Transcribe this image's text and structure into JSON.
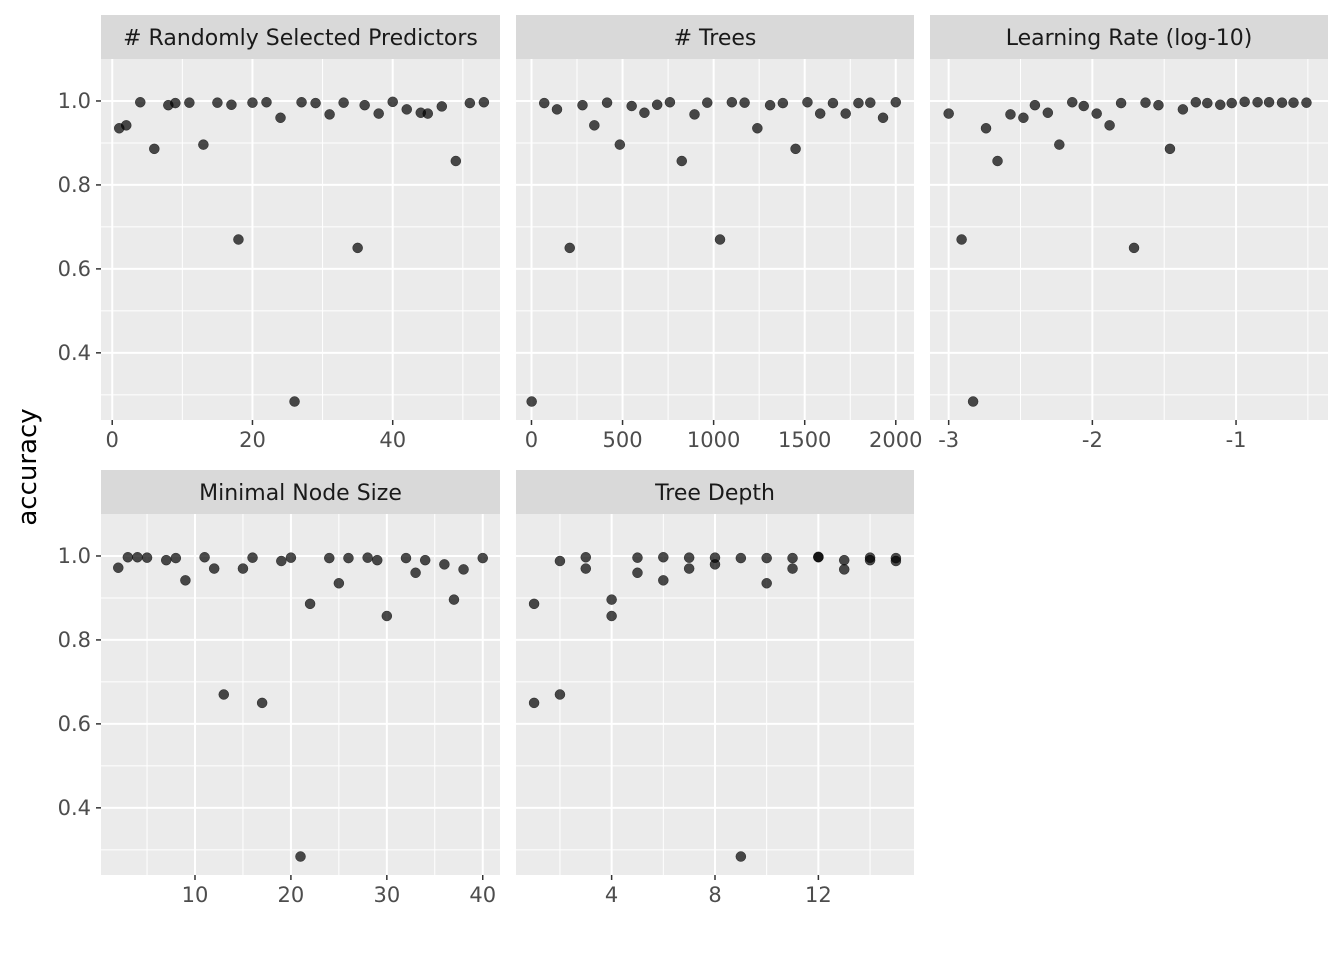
{
  "chart_data": {
    "type": "scatter",
    "ylabel": "accuracy",
    "ylim": [
      0.24,
      1.1
    ],
    "yticks": [
      0.4,
      0.6,
      0.8,
      1.0
    ],
    "ytick_labels": [
      "0.4",
      "0.6",
      "0.8",
      "1.0"
    ],
    "panels": [
      {
        "title": "# Randomly Selected Predictors",
        "xlim": [
          -1.6,
          55.3
        ],
        "xticks": [
          0,
          20,
          40
        ],
        "xtick_labels": [
          "0",
          "20",
          "40"
        ],
        "x": [
          1,
          2,
          4,
          6,
          8,
          9,
          11,
          13,
          15,
          17,
          18,
          20,
          22,
          24,
          26,
          27,
          29,
          31,
          33,
          35,
          36,
          38,
          40,
          42,
          44,
          45,
          47,
          49,
          51,
          53
        ],
        "y": [
          0.935,
          0.942,
          0.997,
          0.886,
          0.99,
          0.995,
          0.996,
          0.896,
          0.996,
          0.991,
          0.67,
          0.996,
          0.997,
          0.96,
          0.284,
          0.997,
          0.995,
          0.968,
          0.996,
          0.65,
          0.99,
          0.97,
          0.998,
          0.98,
          0.972,
          0.97,
          0.987,
          0.857,
          0.995,
          0.997
        ]
      },
      {
        "title": "# Trees",
        "xlim": [
          -85,
          2100
        ],
        "xticks": [
          0,
          500,
          1000,
          1500,
          2000
        ],
        "xtick_labels": [
          "0",
          "500",
          "1000",
          "1500",
          "2000"
        ],
        "x": [
          1,
          70,
          140,
          210,
          280,
          345,
          415,
          485,
          550,
          620,
          690,
          760,
          825,
          895,
          965,
          1035,
          1100,
          1170,
          1240,
          1310,
          1380,
          1450,
          1515,
          1585,
          1655,
          1725,
          1795,
          1860,
          1930,
          2000
        ],
        "y": [
          0.284,
          0.995,
          0.98,
          0.65,
          0.99,
          0.942,
          0.996,
          0.896,
          0.988,
          0.972,
          0.991,
          0.997,
          0.857,
          0.968,
          0.996,
          0.67,
          0.997,
          0.996,
          0.935,
          0.99,
          0.995,
          0.886,
          0.997,
          0.97,
          0.995,
          0.97,
          0.995,
          0.996,
          0.96,
          0.997
        ]
      },
      {
        "title": "Learning Rate (log-10)",
        "xlim": [
          -3.13,
          -0.36
        ],
        "xticks": [
          -3,
          -2,
          -1
        ],
        "xtick_labels": [
          "-3",
          "-2",
          "-1"
        ],
        "x": [
          -3.0,
          -2.91,
          -2.83,
          -2.74,
          -2.66,
          -2.57,
          -2.48,
          -2.4,
          -2.31,
          -2.23,
          -2.14,
          -2.06,
          -1.97,
          -1.88,
          -1.8,
          -1.71,
          -1.63,
          -1.54,
          -1.46,
          -1.37,
          -1.28,
          -1.2,
          -1.11,
          -1.03,
          -0.94,
          -0.85,
          -0.77,
          -0.68,
          -0.6,
          -0.51
        ],
        "y": [
          0.97,
          0.67,
          0.284,
          0.935,
          0.857,
          0.968,
          0.96,
          0.99,
          0.972,
          0.896,
          0.997,
          0.988,
          0.97,
          0.942,
          0.995,
          0.65,
          0.996,
          0.99,
          0.886,
          0.98,
          0.997,
          0.995,
          0.991,
          0.995,
          0.998,
          0.997,
          0.997,
          0.996,
          0.996,
          0.996
        ]
      },
      {
        "title": "Minimal Node Size",
        "xlim": [
          0.2,
          41.8
        ],
        "xticks": [
          10,
          20,
          30,
          40
        ],
        "xtick_labels": [
          "10",
          "20",
          "30",
          "40"
        ],
        "x": [
          2,
          3,
          4,
          5,
          7,
          8,
          9,
          11,
          12,
          13,
          15,
          16,
          17,
          19,
          20,
          21,
          22,
          24,
          25,
          26,
          28,
          29,
          30,
          32,
          33,
          34,
          36,
          37,
          38,
          40
        ],
        "y": [
          0.972,
          0.997,
          0.997,
          0.996,
          0.99,
          0.995,
          0.942,
          0.997,
          0.97,
          0.67,
          0.97,
          0.996,
          0.65,
          0.988,
          0.996,
          0.284,
          0.886,
          0.995,
          0.935,
          0.995,
          0.996,
          0.99,
          0.857,
          0.995,
          0.96,
          0.99,
          0.98,
          0.896,
          0.968,
          0.995
        ]
      },
      {
        "title": "Tree Depth",
        "xlim": [
          0.3,
          15.7
        ],
        "xticks": [
          4,
          8,
          12
        ],
        "xtick_labels": [
          "4",
          "8",
          "12"
        ],
        "x": [
          1,
          1,
          2,
          2,
          3,
          3,
          4,
          4,
          5,
          5,
          6,
          6,
          7,
          7,
          8,
          8,
          9,
          9,
          10,
          10,
          11,
          11,
          12,
          12,
          13,
          13,
          14,
          14,
          15,
          15
        ],
        "y": [
          0.886,
          0.65,
          0.67,
          0.988,
          0.997,
          0.97,
          0.896,
          0.857,
          0.96,
          0.996,
          0.942,
          0.997,
          0.97,
          0.996,
          0.98,
          0.996,
          0.995,
          0.284,
          0.935,
          0.995,
          0.97,
          0.995,
          0.997,
          0.998,
          0.968,
          0.99,
          0.996,
          0.99,
          0.995,
          0.988
        ]
      }
    ]
  }
}
